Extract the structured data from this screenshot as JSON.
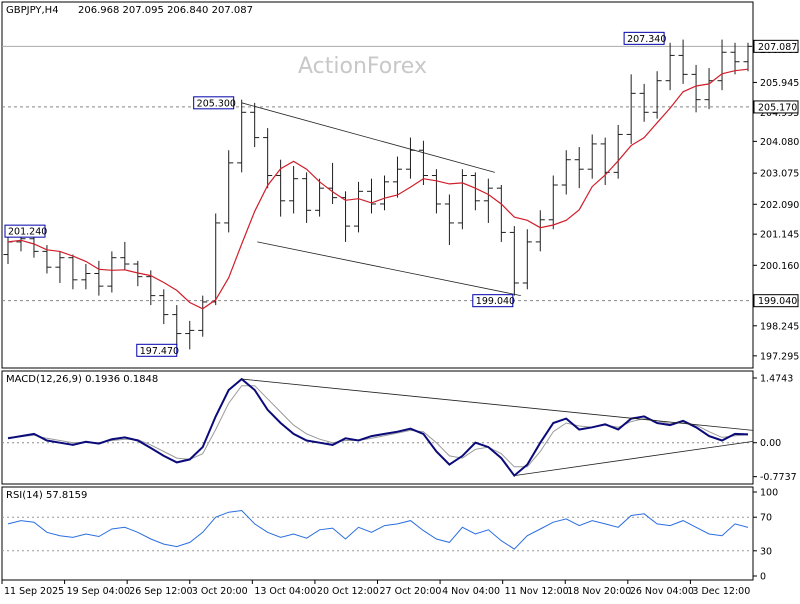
{
  "header": {
    "symbol": "GBPJPY,H4",
    "ohlc": "206.968 207.095 206.840 207.087"
  },
  "watermark": "ActionForex",
  "colors": {
    "candles": "#1e1e1e",
    "sma": "#d01f2b",
    "macd_main": "#0a0a7a",
    "macd_signal": "#9a9a9a",
    "rsi": "#2a6ee0",
    "trendline": "#222222",
    "level": "#222222",
    "grid_dash": "#888888",
    "label_border": "#0000aa"
  },
  "chart_data": [
    {
      "type": "candlestick",
      "name": "price",
      "ylim": [
        197.1,
        208.3
      ],
      "last_price": "207.087",
      "y_ticks": [
        "206.980",
        "205.945",
        "204.995",
        "204.080",
        "203.075",
        "202.090",
        "201.145",
        "200.160",
        "199.040",
        "198.245",
        "197.295"
      ],
      "candles_compact": [
        [
          0,
          200.5,
          201.1,
          200.2,
          200.9
        ],
        [
          1,
          200.9,
          201.4,
          200.6,
          201.0
        ],
        [
          2,
          201.0,
          201.1,
          200.4,
          200.6
        ],
        [
          3,
          200.6,
          200.8,
          199.9,
          200.1
        ],
        [
          4,
          200.1,
          200.6,
          199.6,
          200.4
        ],
        [
          5,
          200.4,
          200.5,
          199.4,
          199.7
        ],
        [
          6,
          199.7,
          200.2,
          199.4,
          199.9
        ],
        [
          7,
          199.9,
          200.3,
          199.2,
          199.5
        ],
        [
          8,
          199.5,
          200.6,
          199.3,
          200.4
        ],
        [
          9,
          200.4,
          200.9,
          200.0,
          200.2
        ],
        [
          10,
          200.2,
          200.3,
          199.5,
          199.8
        ],
        [
          11,
          199.8,
          200.0,
          198.9,
          199.2
        ],
        [
          12,
          199.2,
          199.4,
          198.3,
          198.6
        ],
        [
          13,
          198.6,
          198.9,
          197.6,
          198.0
        ],
        [
          14,
          198.0,
          198.4,
          197.5,
          198.1
        ],
        [
          15,
          198.1,
          199.2,
          197.9,
          199.0
        ],
        [
          16,
          199.0,
          201.8,
          198.9,
          201.5
        ],
        [
          17,
          201.5,
          203.8,
          201.2,
          203.4
        ],
        [
          18,
          203.4,
          205.4,
          203.1,
          205.0
        ],
        [
          19,
          205.0,
          205.3,
          203.9,
          204.2
        ],
        [
          20,
          204.2,
          204.5,
          202.6,
          203.0
        ],
        [
          21,
          203.0,
          203.5,
          201.7,
          202.2
        ],
        [
          22,
          202.2,
          203.3,
          201.8,
          202.9
        ],
        [
          23,
          202.9,
          203.1,
          201.5,
          201.9
        ],
        [
          24,
          201.9,
          202.9,
          201.7,
          202.6
        ],
        [
          25,
          202.6,
          203.4,
          202.1,
          202.3
        ],
        [
          26,
          202.3,
          202.5,
          200.9,
          201.4
        ],
        [
          27,
          201.4,
          202.8,
          201.2,
          202.5
        ],
        [
          28,
          202.5,
          202.9,
          201.8,
          202.1
        ],
        [
          29,
          202.1,
          203.0,
          201.9,
          202.8
        ],
        [
          30,
          202.8,
          203.6,
          202.3,
          203.2
        ],
        [
          31,
          203.2,
          204.2,
          202.9,
          203.8
        ],
        [
          32,
          203.8,
          204.1,
          202.7,
          203.0
        ],
        [
          33,
          203.0,
          203.2,
          201.8,
          202.1
        ],
        [
          34,
          202.1,
          202.4,
          200.8,
          201.5
        ],
        [
          35,
          201.5,
          203.2,
          201.3,
          203.0
        ],
        [
          36,
          203.0,
          203.1,
          201.9,
          202.2
        ],
        [
          37,
          202.2,
          202.9,
          201.5,
          202.6
        ],
        [
          38,
          202.6,
          202.7,
          200.9,
          201.2
        ],
        [
          39,
          201.2,
          201.4,
          199.2,
          199.6
        ],
        [
          40,
          199.6,
          201.3,
          199.4,
          200.9
        ],
        [
          41,
          200.9,
          201.9,
          200.6,
          201.6
        ],
        [
          42,
          201.6,
          203.0,
          201.3,
          202.7
        ],
        [
          43,
          202.7,
          203.8,
          202.4,
          203.5
        ],
        [
          44,
          203.5,
          203.9,
          202.6,
          203.2
        ],
        [
          45,
          203.2,
          204.3,
          202.9,
          204.0
        ],
        [
          46,
          204.0,
          204.2,
          202.7,
          203.1
        ],
        [
          47,
          203.1,
          204.6,
          202.9,
          204.3
        ],
        [
          48,
          204.3,
          206.2,
          204.0,
          205.6
        ],
        [
          49,
          205.6,
          205.9,
          204.7,
          205.0
        ],
        [
          50,
          205.0,
          206.3,
          204.8,
          206.0
        ],
        [
          51,
          206.0,
          207.2,
          205.7,
          206.8
        ],
        [
          52,
          206.8,
          207.3,
          205.9,
          206.2
        ],
        [
          53,
          206.2,
          206.5,
          205.0,
          205.4
        ],
        [
          54,
          205.4,
          206.4,
          205.1,
          206.0
        ],
        [
          55,
          206.0,
          207.3,
          205.7,
          206.9
        ],
        [
          56,
          206.9,
          207.2,
          206.2,
          206.6
        ],
        [
          57,
          206.6,
          207.2,
          206.3,
          207.087
        ]
      ],
      "levels": [
        "207.340",
        "205.300",
        "205.170",
        "201.240",
        "199.040",
        "197.470"
      ],
      "level_values": [
        207.34,
        205.3,
        205.17,
        201.24,
        199.04,
        197.47
      ],
      "x_tick_labels": [
        "11 Sep 2025",
        "19 Sep 04:00",
        "26 Sep 12:00",
        "3 Oct 20:00",
        "13 Oct 04:00",
        "20 Oct 12:00",
        "27 Oct 20:00",
        "4 Nov 04:00",
        "11 Nov 12:00",
        "18 Nov 20:00",
        "26 Nov 04:00",
        "3 Dec 12:00"
      ]
    },
    {
      "type": "line",
      "name": "MACD(12,26,9)",
      "label": "MACD(12,26,9) 0.1936 0.1848",
      "ylim": [
        -0.85,
        1.52
      ],
      "y_ticks": [
        "1.4743",
        "0.00",
        "-0.7737"
      ],
      "main_values": [
        0.1,
        0.15,
        0.2,
        0.05,
        0.0,
        -0.05,
        0.02,
        -0.02,
        0.08,
        0.12,
        0.05,
        -0.12,
        -0.3,
        -0.45,
        -0.38,
        -0.1,
        0.6,
        1.2,
        1.45,
        1.2,
        0.75,
        0.45,
        0.2,
        0.05,
        0.0,
        -0.05,
        0.1,
        0.05,
        0.15,
        0.2,
        0.25,
        0.32,
        0.2,
        -0.2,
        -0.5,
        -0.3,
        0.0,
        -0.1,
        -0.35,
        -0.75,
        -0.5,
        0.0,
        0.45,
        0.55,
        0.3,
        0.35,
        0.42,
        0.3,
        0.55,
        0.6,
        0.45,
        0.4,
        0.5,
        0.35,
        0.15,
        0.05,
        0.2,
        0.19
      ],
      "signal_values": [
        0.12,
        0.14,
        0.17,
        0.1,
        0.05,
        0.0,
        0.01,
        0.0,
        0.05,
        0.08,
        0.07,
        -0.05,
        -0.2,
        -0.35,
        -0.38,
        -0.25,
        0.3,
        0.9,
        1.3,
        1.3,
        1.0,
        0.7,
        0.4,
        0.2,
        0.08,
        0.0,
        0.05,
        0.05,
        0.1,
        0.16,
        0.22,
        0.28,
        0.25,
        0.0,
        -0.3,
        -0.35,
        -0.15,
        -0.1,
        -0.25,
        -0.55,
        -0.55,
        -0.2,
        0.25,
        0.45,
        0.38,
        0.35,
        0.4,
        0.35,
        0.48,
        0.55,
        0.5,
        0.43,
        0.47,
        0.4,
        0.25,
        0.12,
        0.16,
        0.18
      ]
    },
    {
      "type": "line",
      "name": "RSI(14)",
      "label": "RSI(14) 57.8159",
      "ylim": [
        0,
        100
      ],
      "y_ticks": [
        "100",
        "70",
        "30",
        "0"
      ],
      "y_tick_values": [
        100,
        70,
        30,
        0
      ],
      "values": [
        62,
        66,
        64,
        52,
        48,
        46,
        50,
        47,
        56,
        58,
        52,
        44,
        38,
        35,
        40,
        52,
        70,
        76,
        78,
        62,
        52,
        46,
        50,
        45,
        55,
        57,
        44,
        58,
        52,
        60,
        62,
        66,
        54,
        44,
        40,
        58,
        50,
        55,
        42,
        32,
        48,
        56,
        64,
        68,
        60,
        66,
        62,
        58,
        72,
        74,
        62,
        60,
        66,
        58,
        50,
        48,
        62,
        57.8
      ]
    }
  ]
}
